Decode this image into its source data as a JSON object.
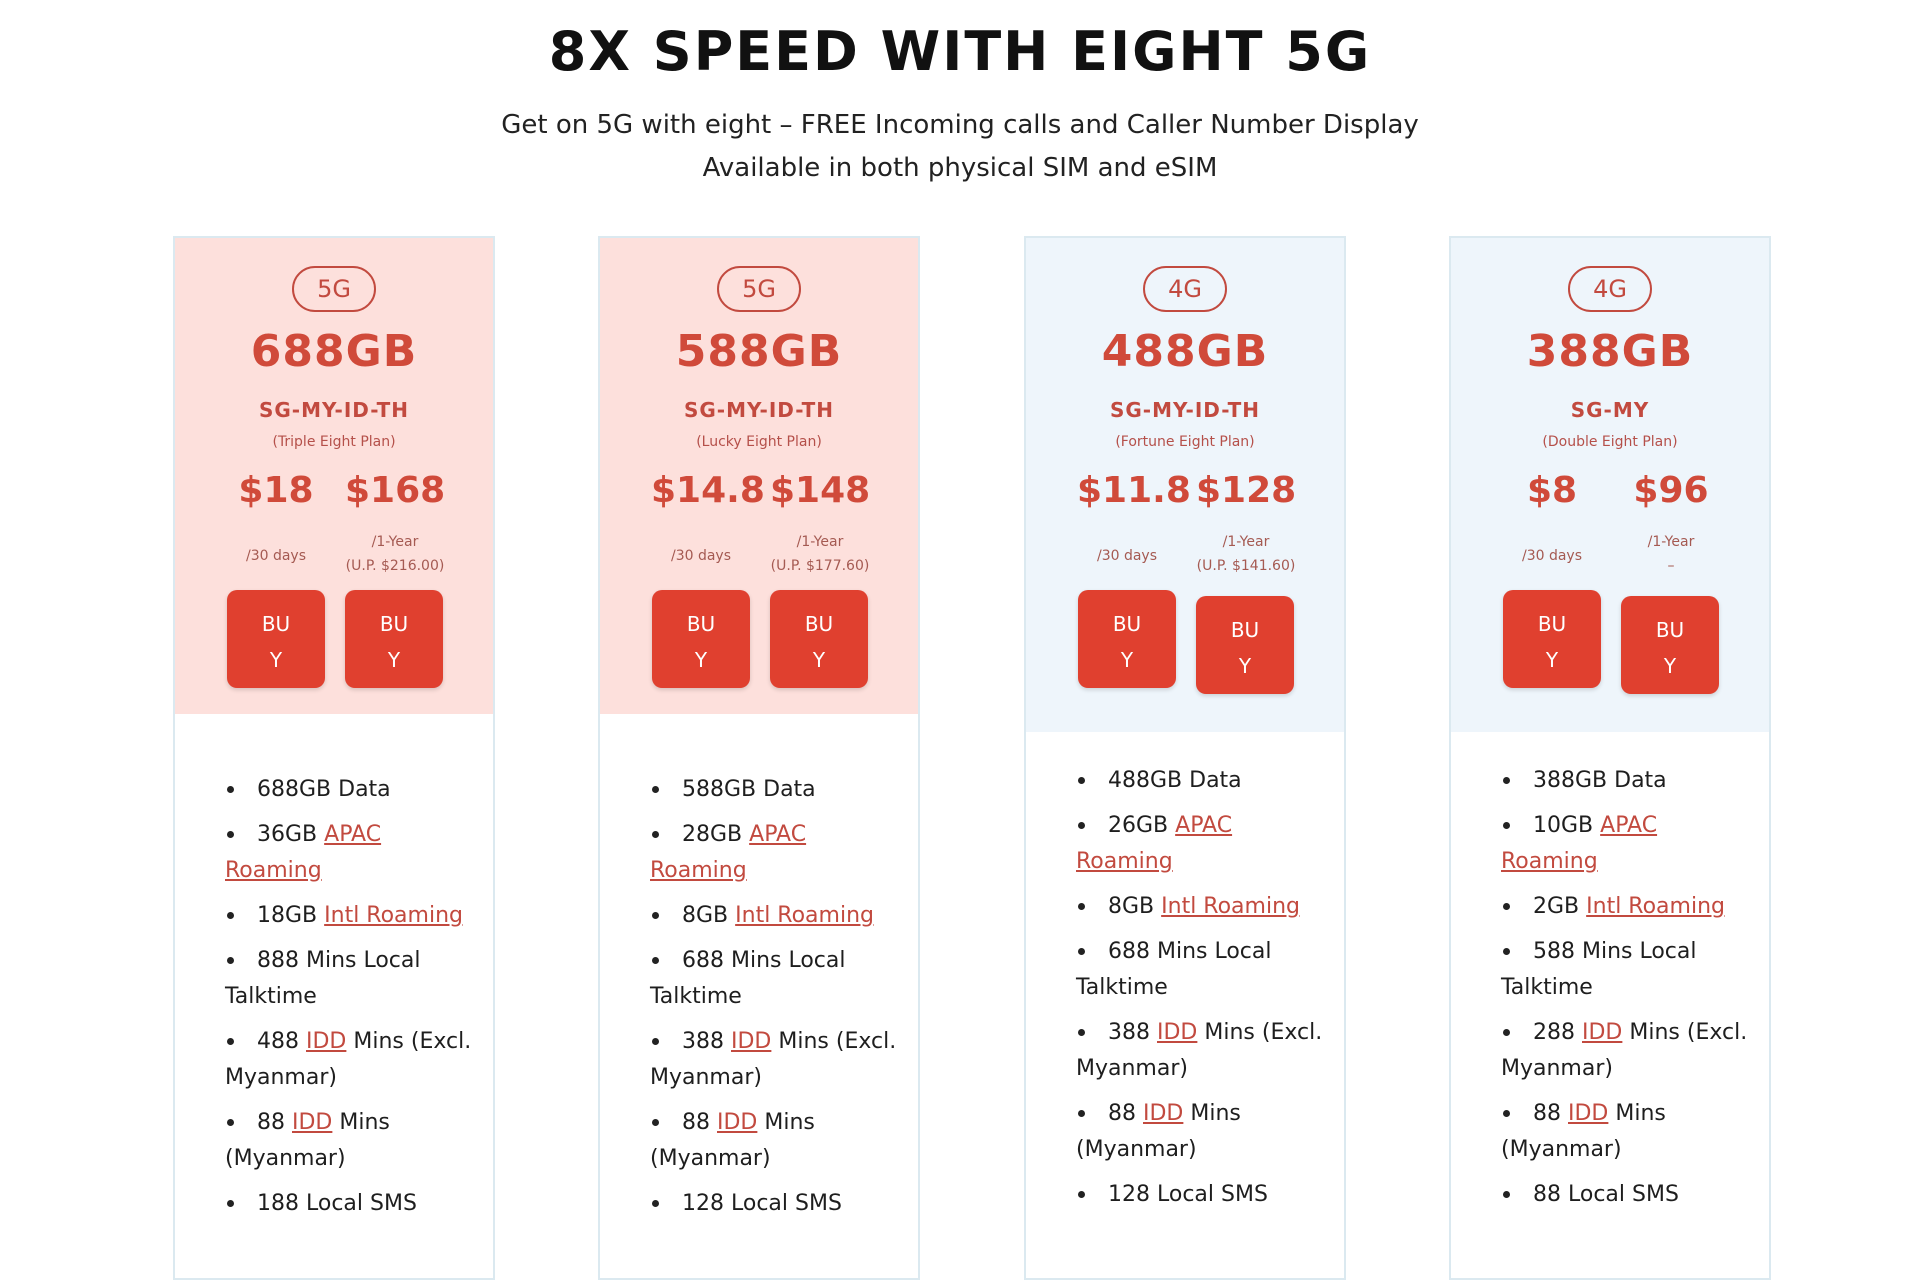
{
  "header": {
    "title": "8X SPEED WITH EIGHT 5G",
    "subtitle1": "Get on 5G with eight – FREE Incoming calls and Caller Number Display",
    "subtitle2": "Available in both physical SIM and eSIM"
  },
  "buy_label_line1": "BU",
  "buy_label_line2": "Y",
  "plans": [
    {
      "network": "5G",
      "data": "688GB",
      "region": "SG-MY-ID-TH",
      "plan_name": "(Triple Eight Plan)",
      "price_monthly": "$18",
      "per_monthly": "/30 days",
      "price_yearly": "$168",
      "per_yearly": "/1-Year",
      "up_price": "(U.P. $216.00)",
      "features": {
        "data": "688GB Data",
        "apac_amount": "36GB",
        "apac_link": "APAC Roaming",
        "intl_amount": "18GB",
        "intl_link": "Intl Roaming",
        "local_talktime": "888 Mins Local Talktime",
        "idd1_amount": "488",
        "idd_link": "IDD",
        "idd1_rest": "Mins (Excl. Myanmar)",
        "idd2_amount": "88",
        "idd2_rest": "Mins (Myanmar)",
        "sms": "188 Local SMS"
      }
    },
    {
      "network": "5G",
      "data": "588GB",
      "region": "SG-MY-ID-TH",
      "plan_name": "(Lucky Eight Plan)",
      "price_monthly": "$14.8",
      "per_monthly": "/30 days",
      "price_yearly": "$148",
      "per_yearly": "/1-Year",
      "up_price": "(U.P. $177.60)",
      "features": {
        "data": "588GB Data",
        "apac_amount": "28GB",
        "apac_link": "APAC Roaming",
        "intl_amount": "8GB",
        "intl_link": "Intl Roaming",
        "local_talktime": "688 Mins Local Talktime",
        "idd1_amount": "388",
        "idd_link": "IDD",
        "idd1_rest": "Mins (Excl. Myanmar)",
        "idd2_amount": "88",
        "idd2_rest": "Mins (Myanmar)",
        "sms": "128 Local SMS"
      }
    },
    {
      "network": "4G",
      "data": "488GB",
      "region": "SG-MY-ID-TH",
      "plan_name": "(Fortune Eight Plan)",
      "price_monthly": "$11.8",
      "per_monthly": "/30 days",
      "price_yearly": "$128",
      "per_yearly": "/1-Year",
      "up_price": "(U.P. $141.60)",
      "features": {
        "data": "488GB Data",
        "apac_amount": "26GB",
        "apac_link": "APAC Roaming",
        "intl_amount": "8GB",
        "intl_link": "Intl Roaming",
        "local_talktime": "688 Mins Local Talktime",
        "idd1_amount": "388",
        "idd_link": "IDD",
        "idd1_rest": "Mins (Excl. Myanmar)",
        "idd2_amount": "88",
        "idd2_rest": "Mins (Myanmar)",
        "sms": "128 Local SMS"
      }
    },
    {
      "network": "4G",
      "data": "388GB",
      "region": "SG-MY",
      "plan_name": "(Double Eight Plan)",
      "price_monthly": "$8",
      "per_monthly": "/30 days",
      "price_yearly": "$96",
      "per_yearly": "/1-Year",
      "up_price": "–",
      "features": {
        "data": "388GB Data",
        "apac_amount": "10GB",
        "apac_link": "APAC Roaming",
        "intl_amount": "2GB",
        "intl_link": "Intl Roaming",
        "local_talktime": "588 Mins Local Talktime",
        "idd1_amount": "288",
        "idd_link": "IDD",
        "idd1_rest": "Mins (Excl. Myanmar)",
        "idd2_amount": "88",
        "idd2_rest": "Mins (Myanmar)",
        "sms": "88 Local SMS"
      }
    }
  ],
  "colors": {
    "accent": "#d04a3a",
    "button": "#e0402f",
    "card_5g_bg": "#fde0dc",
    "card_4g_bg": "#eef5fb",
    "card_border": "#dbe9f0"
  }
}
